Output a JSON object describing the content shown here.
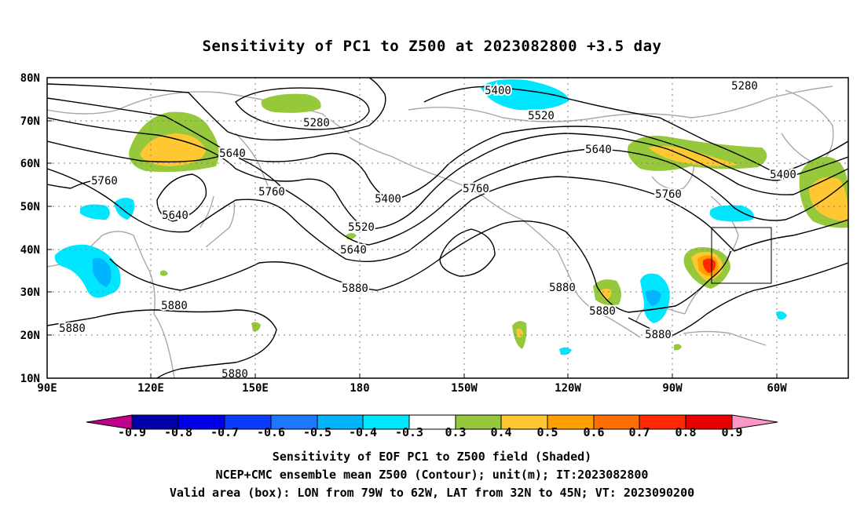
{
  "title": "Sensitivity of PC1 to Z500 at 2023082800 +3.5 day",
  "map": {
    "lat_labels": [
      "80N",
      "70N",
      "60N",
      "50N",
      "40N",
      "30N",
      "20N",
      "10N"
    ],
    "lon_labels": [
      "90E",
      "120E",
      "150E",
      "180",
      "150W",
      "120W",
      "90W",
      "60W"
    ],
    "lon_range": [
      90,
      312
    ],
    "lat_range": [
      10,
      80
    ],
    "contour_labels": [
      "5280",
      "5280",
      "5400",
      "5400",
      "5400",
      "5520",
      "5520",
      "5640",
      "5640",
      "5640",
      "5640",
      "5760",
      "5760",
      "5760",
      "5760",
      "5880",
      "5880",
      "5880",
      "5880",
      "5880",
      "5880",
      "5880"
    ],
    "valid_box": {
      "lon": [
        -79,
        -62
      ],
      "lat": [
        32,
        45
      ]
    }
  },
  "colorbar": {
    "ticks": [
      "-0.9",
      "-0.8",
      "-0.7",
      "-0.6",
      "-0.5",
      "-0.4",
      "-0.3",
      "0.3",
      "0.4",
      "0.5",
      "0.6",
      "0.7",
      "0.8",
      "0.9"
    ],
    "colors": [
      "#c0008c",
      "#0000a8",
      "#0000e6",
      "#0a3cff",
      "#1e78ff",
      "#00b4ff",
      "#00e6ff",
      "#ffffff",
      "#96c83c",
      "#ffc832",
      "#ffa000",
      "#ff6e00",
      "#ff2800",
      "#e60000",
      "#ff96c8"
    ]
  },
  "shading_colors": {
    "cyan": "#00e6ff",
    "lightblue": "#00b4ff",
    "green": "#96c83c",
    "yellow": "#ffc832",
    "orange": "#ffa000",
    "red": "#ff2800"
  },
  "caption": {
    "line1": "Sensitivity of EOF PC1 to Z500 field (Shaded)",
    "line2": "NCEP+CMC ensemble mean Z500 (Contour); unit(m); IT:2023082800",
    "line3": "Valid area (box): LON from 79W to 62W, LAT from 32N to 45N; VT: 2023090200"
  }
}
